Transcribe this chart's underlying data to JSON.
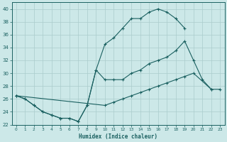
{
  "xlabel": "Humidex (Indice chaleur)",
  "xlim": [
    -0.5,
    23.5
  ],
  "ylim": [
    22,
    41
  ],
  "yticks": [
    22,
    24,
    26,
    28,
    30,
    32,
    34,
    36,
    38,
    40
  ],
  "xticks": [
    0,
    1,
    2,
    3,
    4,
    5,
    6,
    7,
    8,
    9,
    10,
    11,
    12,
    13,
    14,
    15,
    16,
    17,
    18,
    19,
    20,
    21,
    22,
    23
  ],
  "bg_color": "#cce8e8",
  "line_color": "#1a6060",
  "grid_color": "#aacccc",
  "line1_x": [
    0,
    1,
    2,
    3,
    4,
    5,
    6,
    7,
    8,
    9,
    10,
    11,
    12,
    13,
    14,
    15,
    16,
    17,
    18,
    19,
    20,
    21,
    22,
    23
  ],
  "line1_y": [
    26.5,
    26.0,
    25.0,
    24.0,
    23.5,
    23.0,
    23.0,
    22.5,
    25.0,
    30.5,
    34.5,
    35.5,
    37.0,
    38.5,
    38.5,
    39.5,
    40.0,
    39.5,
    38.5,
    37.0,
    null,
    null,
    null,
    null
  ],
  "line2_x": [
    0,
    1,
    2,
    3,
    4,
    5,
    6,
    7,
    8,
    9,
    10,
    11,
    12,
    13,
    14,
    15,
    16,
    17,
    18,
    19,
    20,
    21,
    22,
    23
  ],
  "line2_y": [
    26.5,
    26.0,
    25.0,
    24.0,
    23.5,
    23.0,
    23.0,
    22.5,
    25.0,
    30.5,
    29.0,
    29.0,
    29.0,
    30.0,
    30.5,
    31.5,
    32.0,
    32.5,
    33.5,
    35.0,
    32.0,
    29.0,
    27.5,
    27.5
  ],
  "line3_x": [
    0,
    10,
    11,
    12,
    13,
    14,
    15,
    16,
    17,
    18,
    19,
    20,
    22
  ],
  "line3_y": [
    26.5,
    25.0,
    25.5,
    26.0,
    26.5,
    27.0,
    27.5,
    28.0,
    28.5,
    29.0,
    29.5,
    30.0,
    27.5
  ]
}
